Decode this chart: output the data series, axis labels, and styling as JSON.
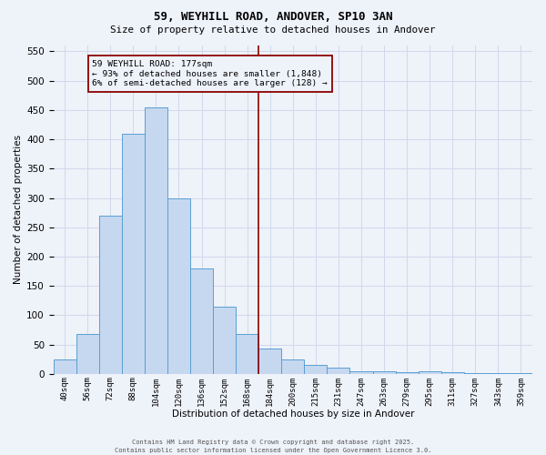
{
  "title1": "59, WEYHILL ROAD, ANDOVER, SP10 3AN",
  "title2": "Size of property relative to detached houses in Andover",
  "xlabel": "Distribution of detached houses by size in Andover",
  "ylabel": "Number of detached properties",
  "bar_labels": [
    "40sqm",
    "56sqm",
    "72sqm",
    "88sqm",
    "104sqm",
    "120sqm",
    "136sqm",
    "152sqm",
    "168sqm",
    "184sqm",
    "200sqm",
    "215sqm",
    "231sqm",
    "247sqm",
    "263sqm",
    "279sqm",
    "295sqm",
    "311sqm",
    "327sqm",
    "343sqm",
    "359sqm"
  ],
  "bar_values": [
    25,
    68,
    270,
    410,
    455,
    300,
    180,
    115,
    68,
    43,
    25,
    15,
    10,
    5,
    5,
    3,
    5,
    3,
    2,
    2,
    1
  ],
  "bar_color": "#c5d8f0",
  "bar_edge_color": "#5a9fd4",
  "grid_color": "#d0d8ec",
  "background_color": "#eef2f9",
  "vline_x_index": 8.5,
  "vline_color": "#8b0000",
  "annotation_text": "59 WEYHILL ROAD: 177sqm\n← 93% of detached houses are smaller (1,848)\n6% of semi-detached houses are larger (128) →",
  "annotation_box_color": "#8b0000",
  "ylim": [
    0,
    560
  ],
  "yticks": [
    0,
    50,
    100,
    150,
    200,
    250,
    300,
    350,
    400,
    450,
    500,
    550
  ],
  "footer1": "Contains HM Land Registry data © Crown copyright and database right 2025.",
  "footer2": "Contains public sector information licensed under the Open Government Licence 3.0."
}
